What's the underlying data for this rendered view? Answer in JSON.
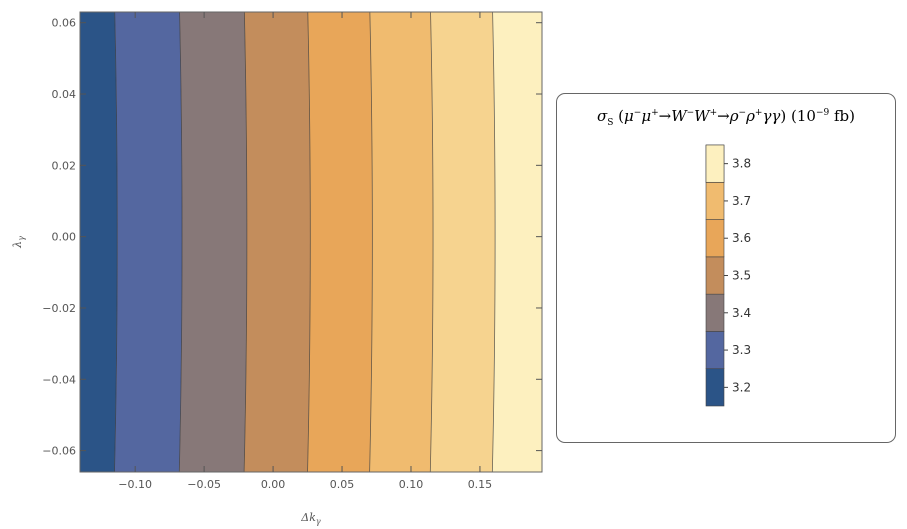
{
  "chart_data": {
    "type": "heatmap",
    "subtype": "contour",
    "xlabel_main": "Δk",
    "xlabel_sub": "γ",
    "ylabel_main": "λ",
    "ylabel_sub": "γ",
    "xlim": [
      -0.14,
      0.195
    ],
    "ylim": [
      -0.066,
      0.063
    ],
    "xticks": [
      -0.1,
      -0.05,
      0.0,
      0.05,
      0.1,
      0.15
    ],
    "xtick_labels": [
      "−0.10",
      "−0.05",
      "0.00",
      "0.05",
      "0.10",
      "0.15"
    ],
    "yticks": [
      -0.06,
      -0.04,
      -0.02,
      0.0,
      0.02,
      0.04,
      0.06
    ],
    "ytick_labels": [
      "−0.06",
      "−0.04",
      "−0.02",
      "0.00",
      "0.02",
      "0.04",
      "0.06"
    ],
    "contour_levels": [
      3.15,
      3.25,
      3.35,
      3.45,
      3.55,
      3.65,
      3.75,
      3.85
    ],
    "contour_x_at_y0": [
      -0.113,
      -0.066,
      -0.019,
      0.027,
      0.072,
      0.116,
      0.161
    ],
    "contour_curvature_dx": 0.002,
    "band_colors": [
      "#2b5487",
      "#5467a0",
      "#877878",
      "#c38d5c",
      "#e8a659",
      "#f0bb6f",
      "#f6d38f",
      "#fdf0bf"
    ],
    "legend": {
      "placement": "right",
      "tick_values": [
        3.2,
        3.3,
        3.4,
        3.5,
        3.6,
        3.7,
        3.8
      ],
      "tick_labels": [
        "3.2",
        "3.3",
        "3.4",
        "3.5",
        "3.6",
        "3.7",
        "3.8"
      ]
    }
  },
  "legend_title": {
    "sigma": "σ",
    "sigma_sub": "S",
    "open": " (",
    "mu1": "μ",
    "mu1_sup": "−",
    "mu2": "μ",
    "mu2_sup": "+",
    "arrow1": "→",
    "w1": "W",
    "w1_sup": "−",
    "w2": "W",
    "w2_sup": "+",
    "arrow2": "→",
    "rho1": "ρ",
    "rho1_sup": "−",
    "rho2": "ρ",
    "rho2_sup": "+",
    "gg": "γγ",
    "close": ") (10",
    "exp": "−9",
    "unit": " fb)"
  }
}
